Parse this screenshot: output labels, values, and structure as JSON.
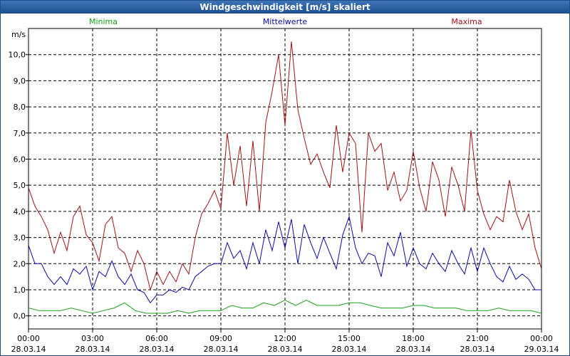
{
  "title": "Windgeschwindigkeit [m/s] skaliert",
  "colors": {
    "minima": "#18a018",
    "mittel": "#0a0aa8",
    "maxima": "#a01414",
    "grid": "#000000"
  },
  "chart_data": {
    "type": "line",
    "title": "Windgeschwindigkeit [m/s] skaliert",
    "ylabel": "m/s",
    "ylim": [
      -0.5,
      11.0
    ],
    "y_ticks": [
      "0,0",
      "1,0",
      "2,0",
      "3,0",
      "4,0",
      "5,0",
      "6,0",
      "7,0",
      "8,0",
      "9,0",
      "10,0"
    ],
    "x_range_hours": [
      0,
      24
    ],
    "x_ticks": [
      {
        "time": "00:00",
        "date": "28.03.14"
      },
      {
        "time": "03:00",
        "date": "28.03.14"
      },
      {
        "time": "06:00",
        "date": "28.03.14"
      },
      {
        "time": "09:00",
        "date": "28.03.14"
      },
      {
        "time": "12:00",
        "date": "28.03.14"
      },
      {
        "time": "15:00",
        "date": "28.03.14"
      },
      {
        "time": "18:00",
        "date": "28.03.14"
      },
      {
        "time": "21:00",
        "date": "28.03.14"
      },
      {
        "time": "00:00",
        "date": "29.03.14"
      }
    ],
    "series": [
      {
        "name": "Minima",
        "key": "minima",
        "hours": [
          0,
          0.5,
          1,
          1.5,
          2,
          2.5,
          3,
          3.5,
          4,
          4.5,
          5,
          5.5,
          6,
          6.5,
          7,
          7.5,
          8,
          8.5,
          9,
          9.5,
          10,
          10.5,
          11,
          11.5,
          12,
          12.5,
          13,
          13.5,
          14,
          14.5,
          15,
          15.5,
          16,
          16.5,
          17,
          17.5,
          18,
          18.5,
          19,
          19.5,
          20,
          20.5,
          21,
          21.5,
          22,
          22.5,
          23,
          23.5,
          24
        ],
        "values": [
          0.3,
          0.2,
          0.2,
          0.2,
          0.3,
          0.2,
          0.1,
          0.2,
          0.3,
          0.5,
          0.2,
          0.1,
          0.1,
          0.1,
          0.2,
          0.1,
          0.2,
          0.2,
          0.2,
          0.4,
          0.3,
          0.3,
          0.5,
          0.4,
          0.6,
          0.4,
          0.6,
          0.4,
          0.4,
          0.4,
          0.5,
          0.5,
          0.4,
          0.3,
          0.3,
          0.3,
          0.4,
          0.4,
          0.3,
          0.3,
          0.3,
          0.2,
          0.2,
          0.2,
          0.3,
          0.2,
          0.2,
          0.2,
          0.1
        ]
      },
      {
        "name": "Mittelwerte",
        "key": "mittel",
        "hours": [
          0,
          0.3,
          0.6,
          0.9,
          1.2,
          1.5,
          1.8,
          2.1,
          2.4,
          2.7,
          3,
          3.3,
          3.6,
          3.9,
          4.2,
          4.5,
          4.8,
          5.1,
          5.4,
          5.7,
          6,
          6.3,
          6.6,
          6.9,
          7.2,
          7.5,
          7.8,
          8.1,
          8.4,
          8.7,
          9,
          9.3,
          9.6,
          9.9,
          10.2,
          10.5,
          10.8,
          11.1,
          11.4,
          11.7,
          12,
          12.3,
          12.6,
          12.9,
          13.2,
          13.5,
          13.8,
          14.1,
          14.4,
          14.7,
          15,
          15.3,
          15.6,
          15.9,
          16.2,
          16.5,
          16.8,
          17.1,
          17.4,
          17.7,
          18,
          18.3,
          18.6,
          18.9,
          19.2,
          19.5,
          19.8,
          20.1,
          20.4,
          20.7,
          21,
          21.3,
          21.6,
          21.9,
          22.2,
          22.5,
          22.8,
          23.1,
          23.4,
          23.7,
          24
        ],
        "values": [
          2.7,
          2.0,
          2.0,
          1.5,
          1.2,
          1.5,
          1.2,
          1.8,
          1.6,
          1.9,
          1.0,
          1.7,
          1.5,
          2.1,
          1.5,
          1.2,
          1.6,
          1.0,
          0.9,
          0.5,
          0.8,
          0.8,
          1.0,
          0.9,
          1.1,
          1.0,
          1.5,
          1.7,
          1.9,
          2.0,
          2.0,
          2.8,
          2.2,
          2.5,
          1.8,
          2.8,
          2.0,
          3.3,
          2.5,
          3.6,
          2.6,
          3.7,
          2.0,
          3.5,
          2.8,
          2.2,
          3.0,
          2.4,
          1.8,
          3.1,
          3.8,
          2.6,
          2.0,
          2.4,
          2.3,
          1.5,
          2.8,
          2.3,
          3.2,
          1.9,
          2.6,
          2.0,
          1.8,
          2.4,
          2.0,
          1.7,
          2.5,
          2.0,
          1.6,
          2.6,
          1.7,
          2.6,
          2.0,
          1.5,
          1.3,
          1.9,
          1.4,
          1.6,
          1.4,
          1.0,
          1.0
        ]
      },
      {
        "name": "Maxima",
        "key": "maxima",
        "hours": [
          0,
          0.3,
          0.6,
          0.9,
          1.2,
          1.5,
          1.8,
          2.1,
          2.4,
          2.7,
          3,
          3.3,
          3.6,
          3.9,
          4.2,
          4.5,
          4.8,
          5.1,
          5.4,
          5.7,
          6,
          6.3,
          6.6,
          6.9,
          7.2,
          7.5,
          7.8,
          8.1,
          8.4,
          8.7,
          9,
          9.3,
          9.6,
          9.9,
          10.2,
          10.5,
          10.8,
          11.1,
          11.4,
          11.7,
          12,
          12.3,
          12.6,
          12.9,
          13.2,
          13.5,
          13.8,
          14.1,
          14.4,
          14.7,
          15,
          15.3,
          15.6,
          15.9,
          16.2,
          16.5,
          16.8,
          17.1,
          17.4,
          17.7,
          18,
          18.3,
          18.6,
          18.9,
          19.2,
          19.5,
          19.8,
          20.1,
          20.4,
          20.7,
          21,
          21.3,
          21.6,
          21.9,
          22.2,
          22.5,
          22.8,
          23.1,
          23.4,
          23.7,
          24
        ],
        "values": [
          4.9,
          4.2,
          3.8,
          3.3,
          2.4,
          3.2,
          2.5,
          3.8,
          4.2,
          3.1,
          2.8,
          2.1,
          3.5,
          3.8,
          2.6,
          2.4,
          1.7,
          2.5,
          2.0,
          1.0,
          1.7,
          1.2,
          1.7,
          1.3,
          2.0,
          1.6,
          3.0,
          3.9,
          4.3,
          4.8,
          4.1,
          7.0,
          5.0,
          6.5,
          4.2,
          6.7,
          4.0,
          7.4,
          8.6,
          10.0,
          7.3,
          10.5,
          7.9,
          6.8,
          5.8,
          6.2,
          5.5,
          4.9,
          7.3,
          5.5,
          7.0,
          6.6,
          3.2,
          7.0,
          6.3,
          6.6,
          4.8,
          5.5,
          4.4,
          4.8,
          6.3,
          4.9,
          4.0,
          5.9,
          5.2,
          3.8,
          5.7,
          5.0,
          4.0,
          7.1,
          4.8,
          3.9,
          3.3,
          3.8,
          3.6,
          5.2,
          4.0,
          3.3,
          3.9,
          2.6,
          1.8
        ]
      }
    ]
  },
  "legend": {
    "minima": "Minima",
    "mittel": "Mittelwerte",
    "maxima": "Maxima"
  }
}
